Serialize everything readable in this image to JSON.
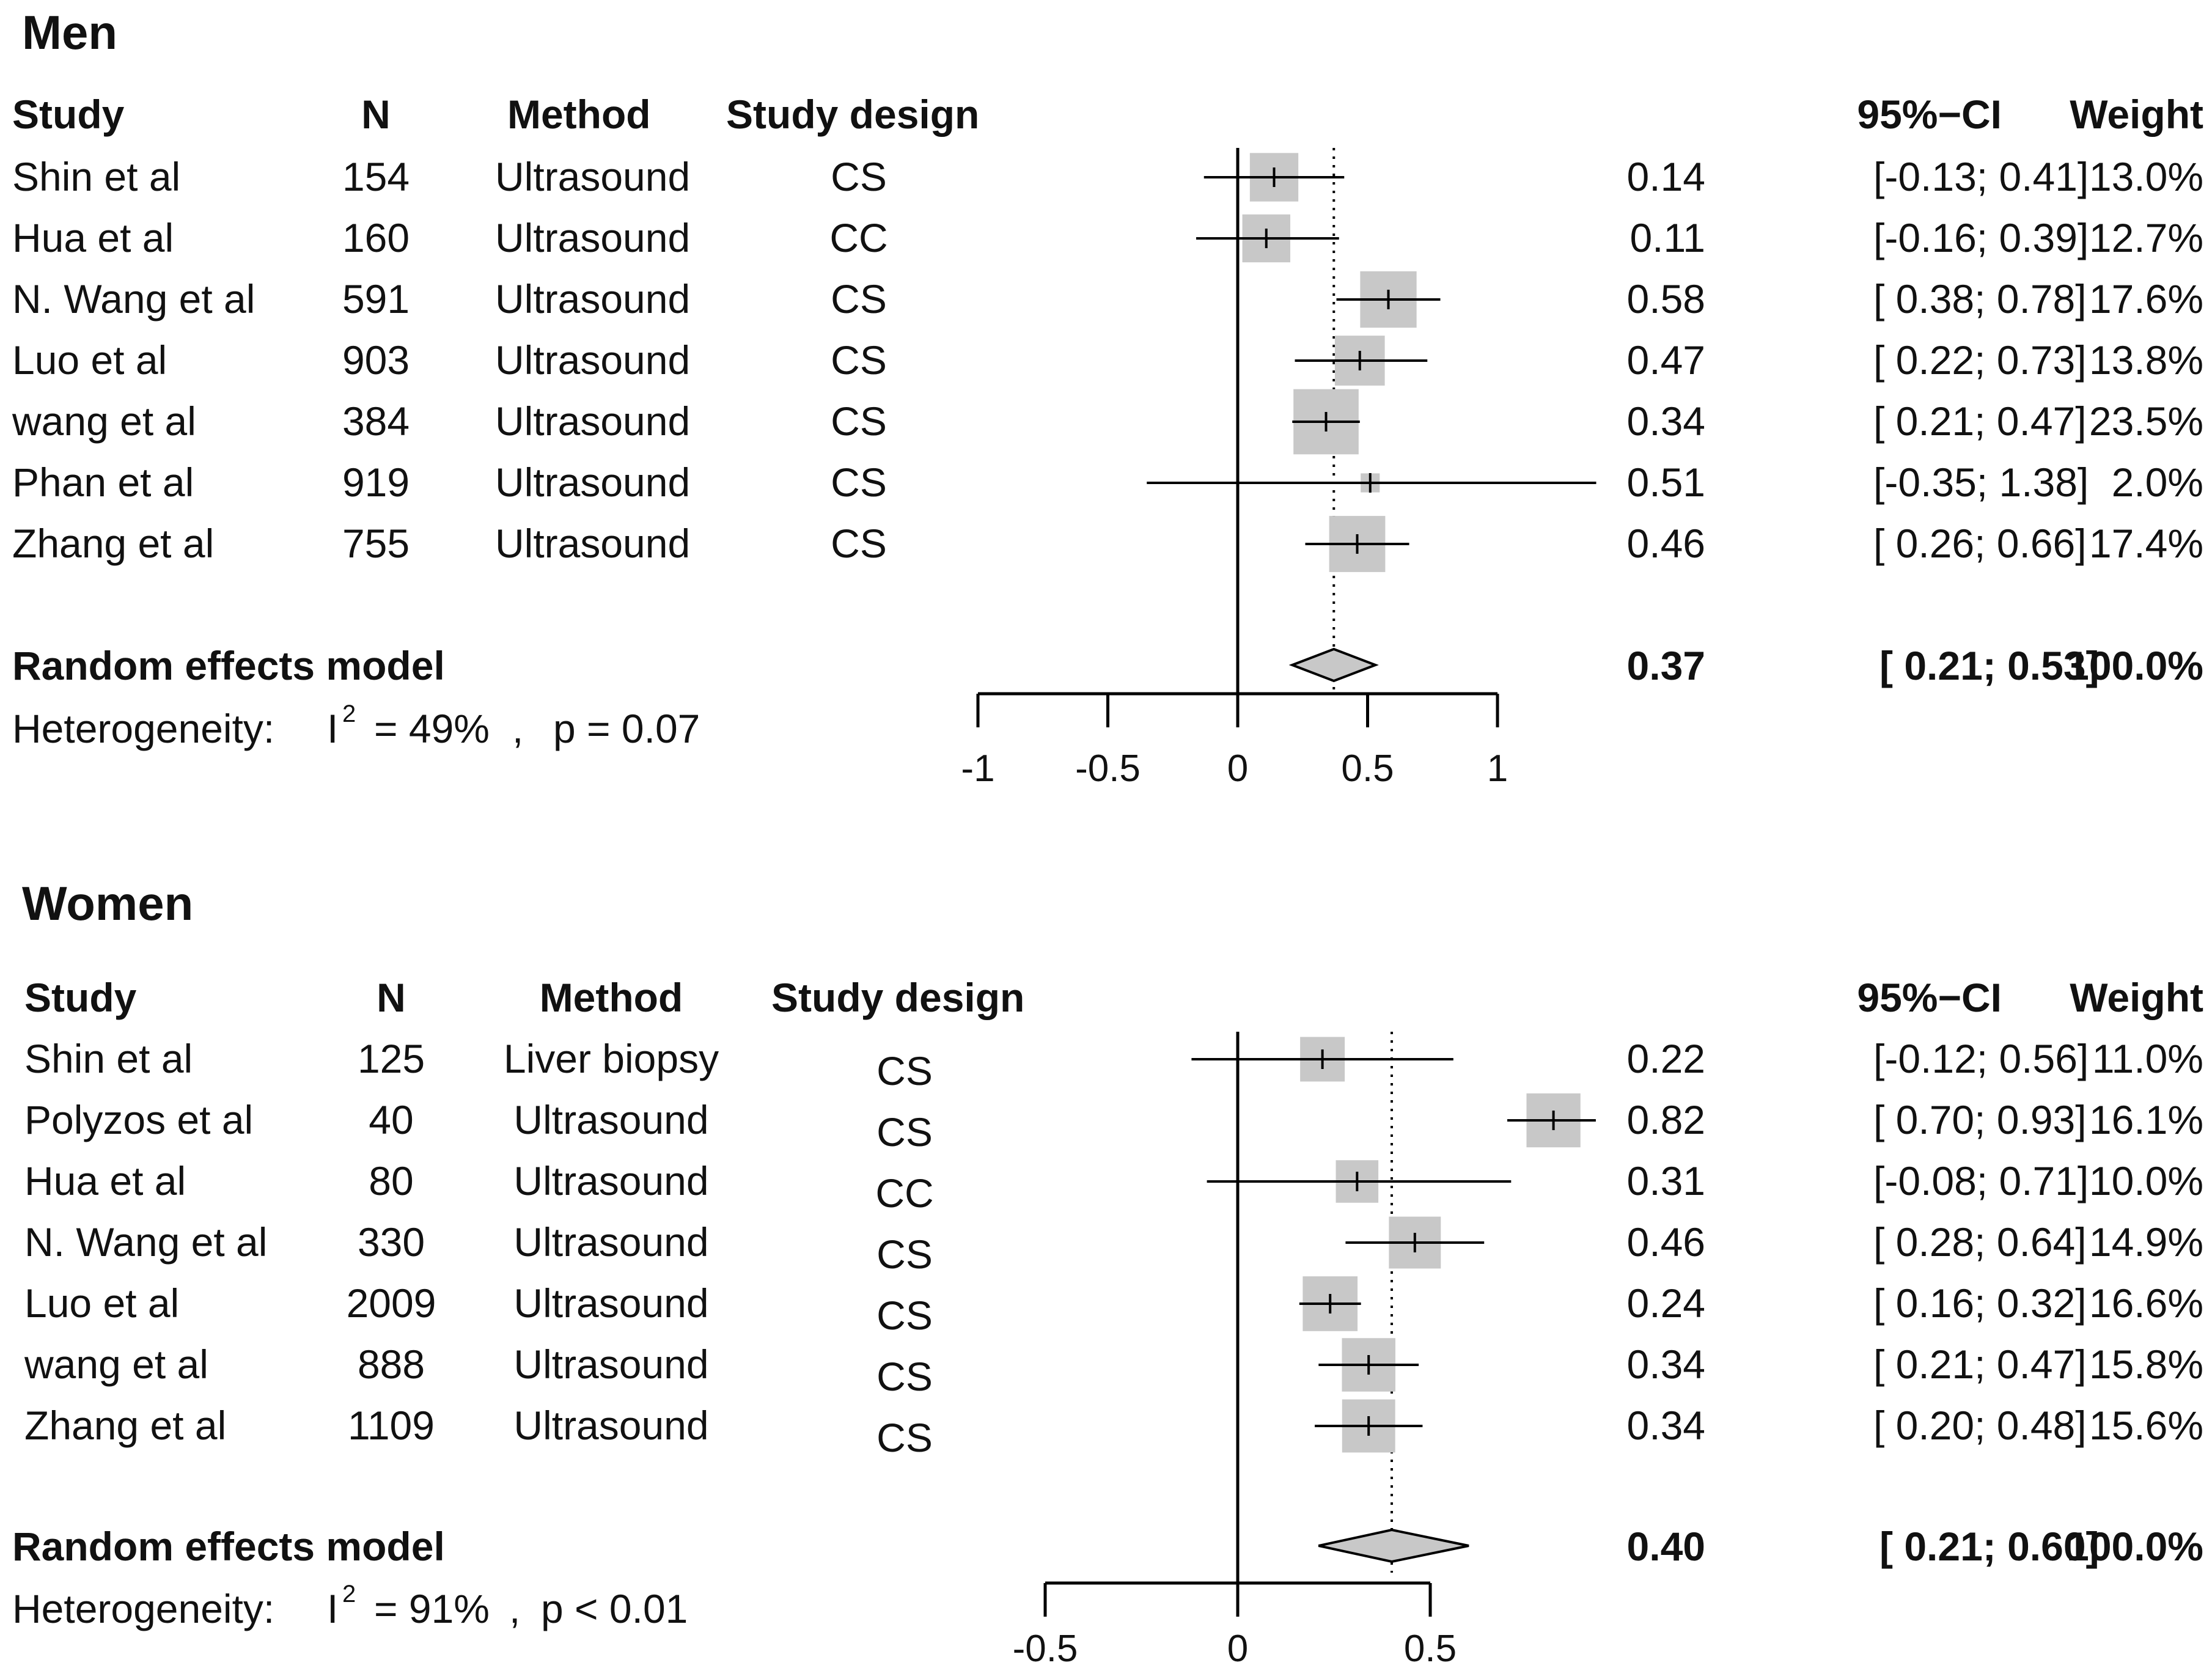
{
  "chart_data": [
    {
      "type": "forest",
      "title": "Men",
      "headers": {
        "study": "Study",
        "n": "N",
        "method": "Method",
        "design": "Study design",
        "ci": "95%−CI",
        "weight": "Weight"
      },
      "studies": [
        {
          "study": "Shin et al",
          "n": "154",
          "method": "Ultrasound",
          "design": "CS",
          "est": 0.14,
          "lo": -0.13,
          "hi": 0.41,
          "est_text": "0.14",
          "ci_text": "[-0.13; 0.41]",
          "weight_text": "13.0%",
          "weight": 13.0
        },
        {
          "study": "Hua et al",
          "n": "160",
          "method": "Ultrasound",
          "design": "CC",
          "est": 0.11,
          "lo": -0.16,
          "hi": 0.39,
          "est_text": "0.11",
          "ci_text": "[-0.16; 0.39]",
          "weight_text": "12.7%",
          "weight": 12.7
        },
        {
          "study": "N. Wang et al",
          "n": "591",
          "method": "Ultrasound",
          "design": "CS",
          "est": 0.58,
          "lo": 0.38,
          "hi": 0.78,
          "est_text": "0.58",
          "ci_text": "[ 0.38; 0.78]",
          "weight_text": "17.6%",
          "weight": 17.6
        },
        {
          "study": "Luo et al",
          "n": "903",
          "method": "Ultrasound",
          "design": "CS",
          "est": 0.47,
          "lo": 0.22,
          "hi": 0.73,
          "est_text": "0.47",
          "ci_text": "[ 0.22; 0.73]",
          "weight_text": "13.8%",
          "weight": 13.8
        },
        {
          "study": "wang et al",
          "n": "384",
          "method": "Ultrasound",
          "design": "CS",
          "est": 0.34,
          "lo": 0.21,
          "hi": 0.47,
          "est_text": "0.34",
          "ci_text": "[ 0.21; 0.47]",
          "weight_text": "23.5%",
          "weight": 23.5
        },
        {
          "study": "Phan et al",
          "n": "919",
          "method": "Ultrasound",
          "design": "CS",
          "est": 0.51,
          "lo": -0.35,
          "hi": 1.38,
          "est_text": "0.51",
          "ci_text": "[-0.35; 1.38]",
          "weight_text": "2.0%",
          "weight": 2.0
        },
        {
          "study": "Zhang et al",
          "n": "755",
          "method": "Ultrasound",
          "design": "CS",
          "est": 0.46,
          "lo": 0.26,
          "hi": 0.66,
          "est_text": "0.46",
          "ci_text": "[ 0.26; 0.66]",
          "weight_text": "17.4%",
          "weight": 17.4
        }
      ],
      "summary": {
        "label": "Random effects model",
        "est": 0.37,
        "lo": 0.21,
        "hi": 0.53,
        "est_text": "0.37",
        "ci_text": "[ 0.21; 0.53]",
        "weight_text": "100.0%"
      },
      "heterogeneity": {
        "label": "Heterogeneity:",
        "i2_letter": "I",
        "i2_exp": "2",
        "i2_value": "= 49%",
        "sep": ",",
        "p_text": "p = 0.07"
      },
      "xlim": [
        -1,
        1
      ],
      "ticks": [
        -1,
        -0.5,
        0,
        0.5,
        1
      ],
      "tick_labels": [
        "-1",
        "-0.5",
        "0",
        "0.5",
        "1"
      ],
      "reference_line": 0
    },
    {
      "type": "forest",
      "title": "Women",
      "headers": {
        "study": "Study",
        "n": "N",
        "method": "Method",
        "design": "Study design",
        "ci": "95%−CI",
        "weight": "Weight"
      },
      "studies": [
        {
          "study": "Shin et al",
          "n": "125",
          "method": "Liver biopsy",
          "design": "CS",
          "est": 0.22,
          "lo": -0.12,
          "hi": 0.56,
          "est_text": "0.22",
          "ci_text": "[-0.12; 0.56]",
          "weight_text": "11.0%",
          "weight": 11.0
        },
        {
          "study": "Polyzos et al",
          "n": "40",
          "method": "Ultrasound",
          "design": "CS",
          "est": 0.82,
          "lo": 0.7,
          "hi": 0.93,
          "est_text": "0.82",
          "ci_text": "[ 0.70; 0.93]",
          "weight_text": "16.1%",
          "weight": 16.1
        },
        {
          "study": "Hua et al",
          "n": "80",
          "method": "Ultrasound",
          "design": "CC",
          "est": 0.31,
          "lo": -0.08,
          "hi": 0.71,
          "est_text": "0.31",
          "ci_text": "[-0.08; 0.71]",
          "weight_text": "10.0%",
          "weight": 10.0
        },
        {
          "study": "N. Wang et al",
          "n": "330",
          "method": "Ultrasound",
          "design": "CS",
          "est": 0.46,
          "lo": 0.28,
          "hi": 0.64,
          "est_text": "0.46",
          "ci_text": "[ 0.28; 0.64]",
          "weight_text": "14.9%",
          "weight": 14.9
        },
        {
          "study": "Luo et al",
          "n": "2009",
          "method": "Ultrasound",
          "design": "CS",
          "est": 0.24,
          "lo": 0.16,
          "hi": 0.32,
          "est_text": "0.24",
          "ci_text": "[ 0.16; 0.32]",
          "weight_text": "16.6%",
          "weight": 16.6
        },
        {
          "study": "wang et al",
          "n": "888",
          "method": "Ultrasound",
          "design": "CS",
          "est": 0.34,
          "lo": 0.21,
          "hi": 0.47,
          "est_text": "0.34",
          "ci_text": "[ 0.21; 0.47]",
          "weight_text": "15.8%",
          "weight": 15.8
        },
        {
          "study": "Zhang et al",
          "n": "1109",
          "method": "Ultrasound",
          "design": "CS",
          "est": 0.34,
          "lo": 0.2,
          "hi": 0.48,
          "est_text": "0.34",
          "ci_text": "[ 0.20; 0.48]",
          "weight_text": "15.6%",
          "weight": 15.6
        }
      ],
      "summary": {
        "label": "Random effects model",
        "est": 0.4,
        "lo": 0.21,
        "hi": 0.6,
        "est_text": "0.40",
        "ci_text": "[ 0.21; 0.60]",
        "weight_text": "100.0%"
      },
      "heterogeneity": {
        "label": "Heterogeneity:",
        "i2_letter": "I",
        "i2_exp": "2",
        "i2_value": "= 91%",
        "sep": ",",
        "p_text": "p < 0.01"
      },
      "xlim": [
        -0.5,
        0.5
      ],
      "ticks": [
        -0.5,
        0,
        0.5
      ],
      "tick_labels": [
        "-0.5",
        "0",
        "0.5"
      ],
      "reference_line": 0
    }
  ],
  "colors": {
    "box": "#c8c8c8",
    "diamond": "#c8c8c8",
    "line": "#000000",
    "text": "#111111"
  }
}
